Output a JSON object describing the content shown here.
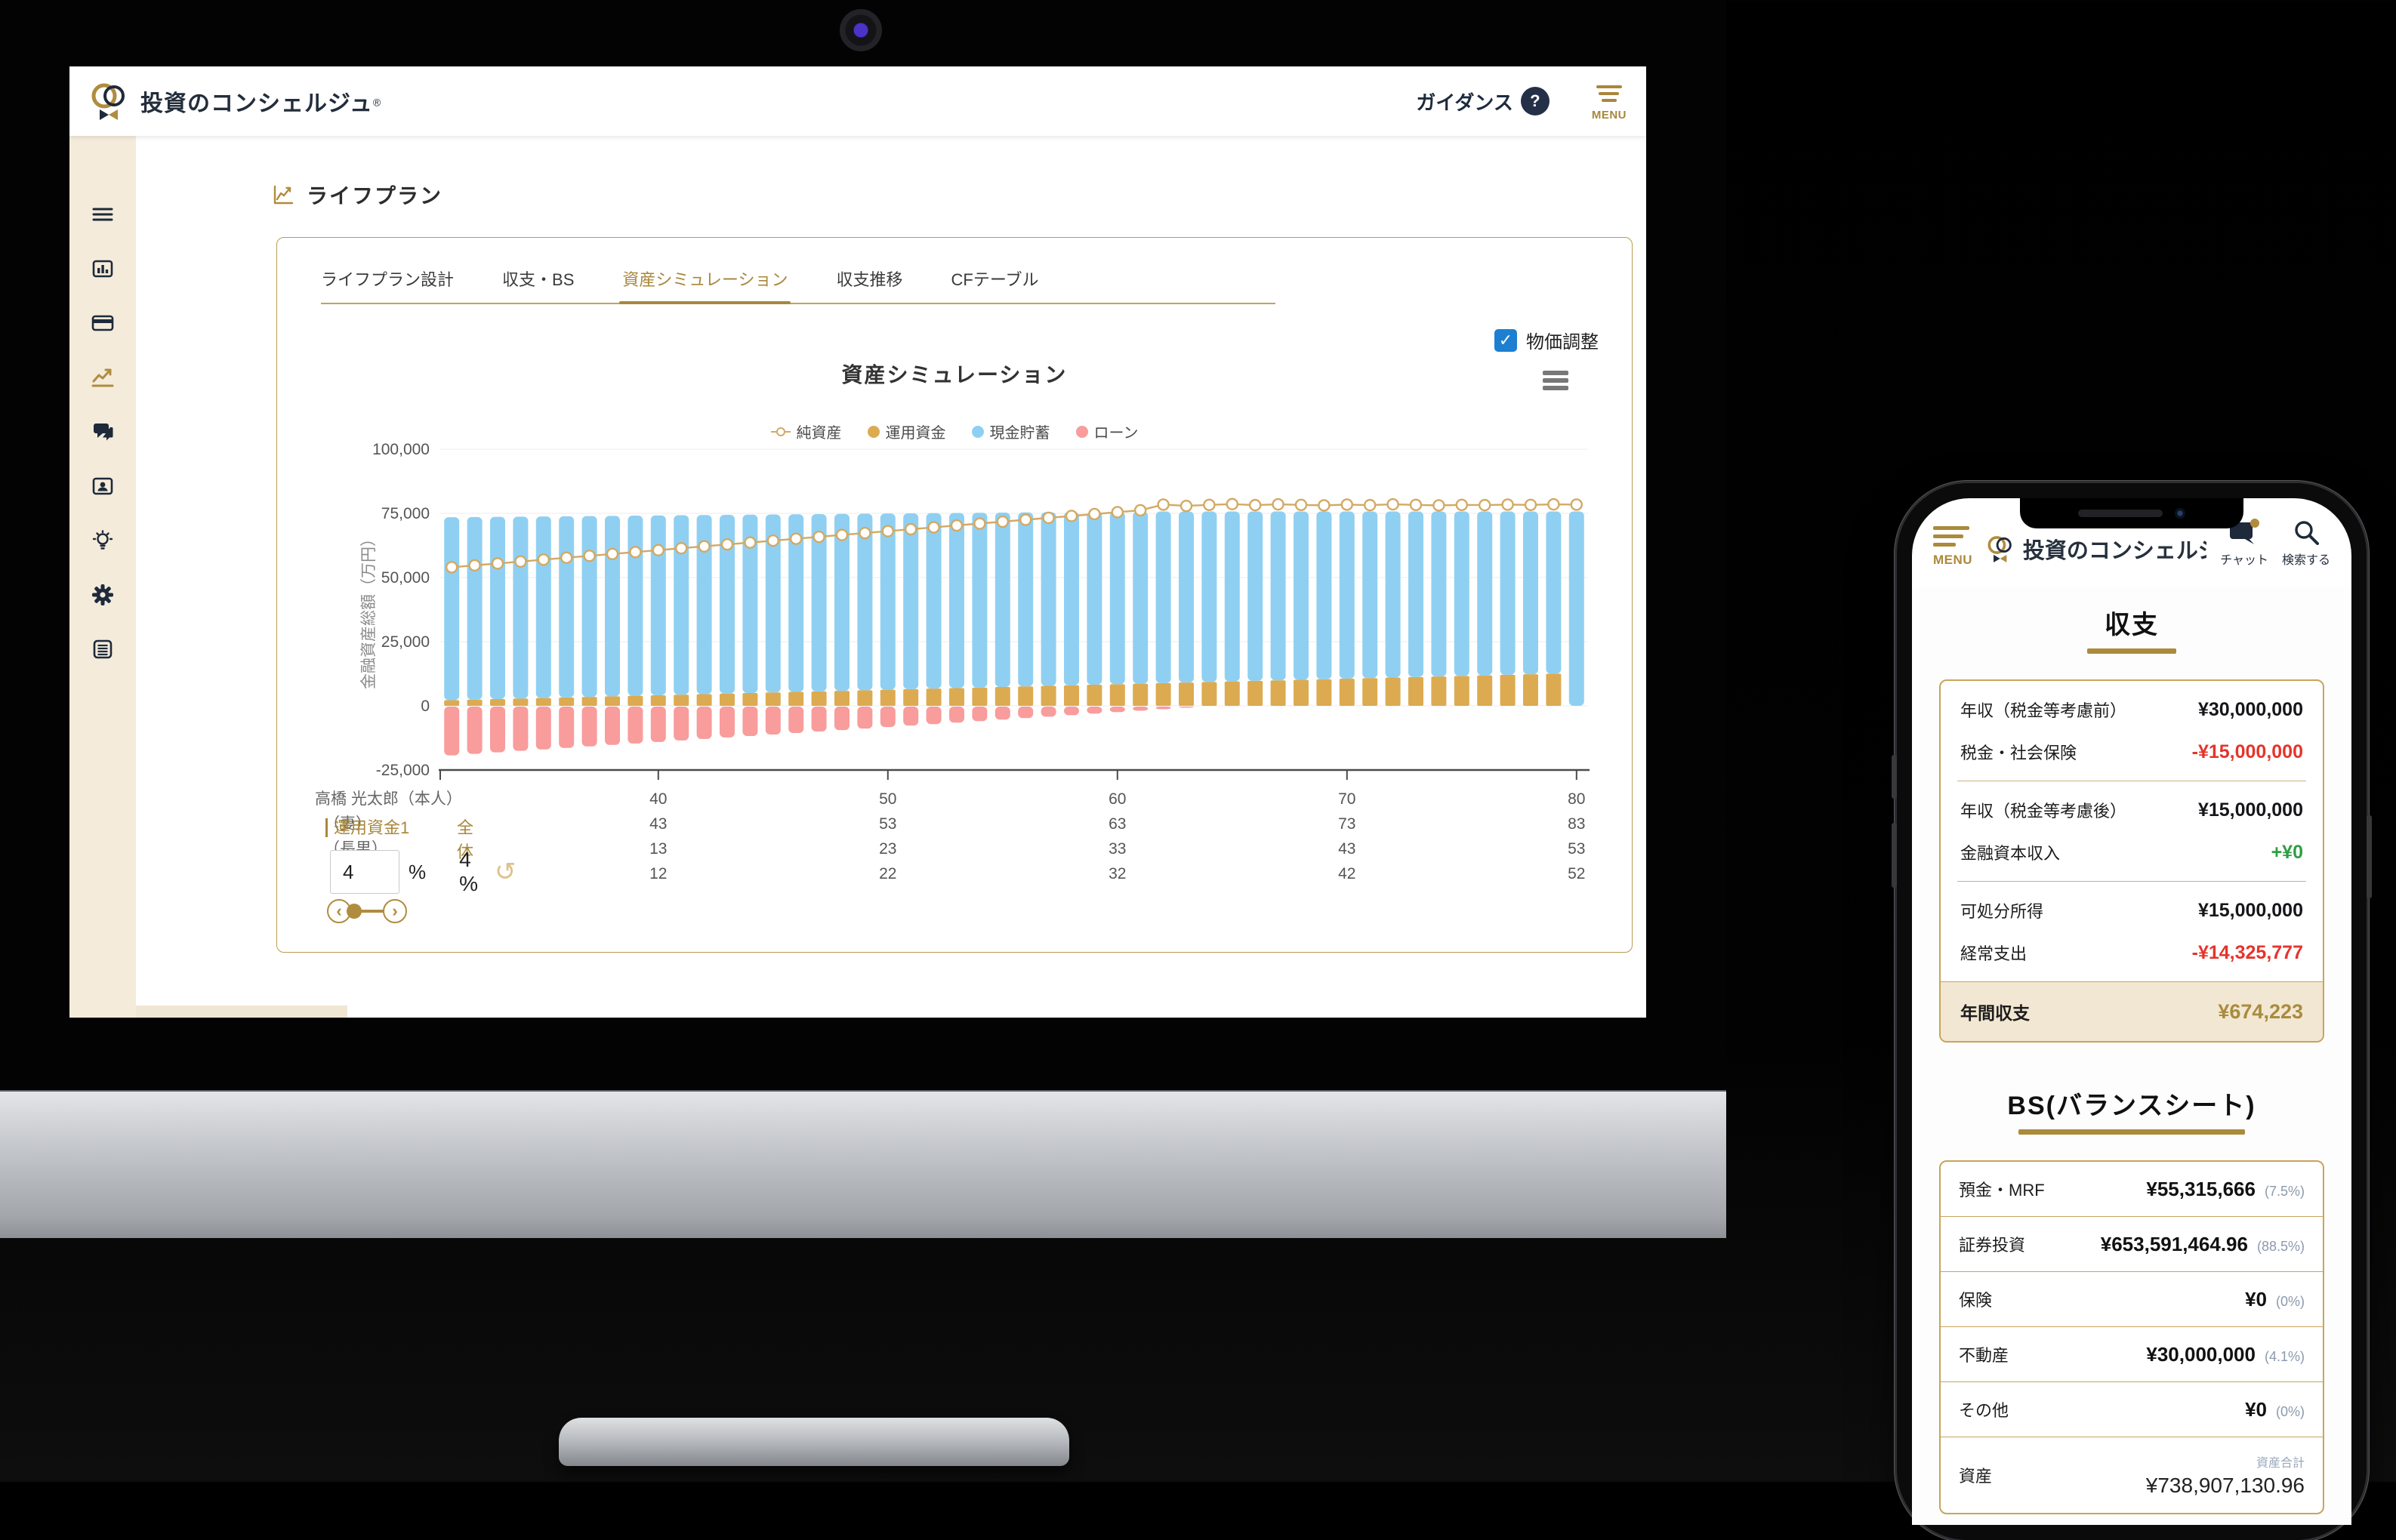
{
  "desktop": {
    "header": {
      "brand": "投資のコンシェルジュ",
      "registered": "®",
      "guidance": "ガイダンス",
      "help_glyph": "?",
      "menu": "MENU"
    },
    "page_title": "ライフプラン",
    "tabs": [
      {
        "label": "ライフプラン設計"
      },
      {
        "label": "収支・BS"
      },
      {
        "label": "資産シミュレーション"
      },
      {
        "label": "収支推移"
      },
      {
        "label": "CFテーブル"
      }
    ],
    "active_tab_index": 2,
    "price_adjust_label": "物価調整",
    "check_glyph": "✓",
    "controls": {
      "fund_label": "運用資金1",
      "overall_label": "全体",
      "fund_rate": "4",
      "percent": "%",
      "overall_rate": "4 %",
      "undo_glyph": "↺",
      "slider_left": "‹",
      "slider_right": "›"
    }
  },
  "chart_data": {
    "type": "bar",
    "title": "資産シミュレーション",
    "ylabel": "金融資産総額（万円）",
    "ylim": [
      -25000,
      100000
    ],
    "yticks": [
      100000,
      75000,
      50000,
      25000,
      0,
      -25000
    ],
    "grid": true,
    "legend_position": "top",
    "ages": [
      31,
      32,
      33,
      34,
      35,
      36,
      37,
      38,
      39,
      40,
      41,
      42,
      43,
      44,
      45,
      46,
      47,
      48,
      49,
      50,
      51,
      52,
      53,
      54,
      55,
      56,
      57,
      58,
      59,
      60,
      61,
      62,
      63,
      64,
      65,
      66,
      67,
      68,
      69,
      70,
      71,
      72,
      73,
      74,
      75,
      76,
      77,
      78,
      79,
      80
    ],
    "series": [
      {
        "name": "純資産",
        "type": "line",
        "color": "#d3a963",
        "values": [
          54000,
          54740,
          55480,
          56220,
          56960,
          57700,
          58440,
          59180,
          59920,
          60660,
          61400,
          62140,
          62880,
          63620,
          64360,
          65100,
          65840,
          66580,
          67320,
          68060,
          68800,
          69540,
          70280,
          71020,
          71760,
          72500,
          73240,
          73980,
          74720,
          75460,
          76200,
          78400,
          77900,
          78300,
          78600,
          78200,
          78500,
          78300,
          78100,
          78400,
          78200,
          78500,
          78300,
          78100,
          78300,
          78200,
          78400,
          78300,
          78500,
          78400
        ]
      },
      {
        "name": "運用資金",
        "type": "bar",
        "color": "#dcab51",
        "values": [
          2200,
          2415,
          2630,
          2845,
          3060,
          3275,
          3490,
          3705,
          3920,
          4135,
          4350,
          4565,
          4780,
          4995,
          5210,
          5425,
          5640,
          5855,
          6070,
          6285,
          6500,
          6715,
          6930,
          7145,
          7360,
          7575,
          7790,
          8005,
          8220,
          8435,
          8650,
          8865,
          9080,
          9295,
          9510,
          9725,
          9940,
          10155,
          10370,
          10585,
          10800,
          11015,
          11230,
          11445,
          11660,
          11875,
          12090,
          12305,
          12520,
          0
        ]
      },
      {
        "name": "現金貯蓄",
        "type": "bar",
        "color": "#8fd0f2",
        "values": [
          71300,
          71160,
          71020,
          70880,
          70740,
          70600,
          70460,
          70320,
          70180,
          70040,
          69900,
          69760,
          69620,
          69480,
          69340,
          69200,
          69060,
          68920,
          68780,
          68640,
          68500,
          68360,
          68220,
          68080,
          67940,
          67800,
          67660,
          67520,
          67380,
          67240,
          67100,
          66885,
          66670,
          66455,
          66240,
          66025,
          65810,
          65595,
          65380,
          65165,
          64950,
          64735,
          64520,
          64305,
          64090,
          63875,
          63660,
          63445,
          63230,
          75750
        ]
      },
      {
        "name": "ローン",
        "type": "bar",
        "color": "#f99c9c",
        "values": [
          -19000,
          -18420,
          -17840,
          -17260,
          -16680,
          -16100,
          -15520,
          -14940,
          -14360,
          -13780,
          -13200,
          -12620,
          -12040,
          -11460,
          -10880,
          -10300,
          -9720,
          -9140,
          -8560,
          -7980,
          -7400,
          -6820,
          -6240,
          -5660,
          -5080,
          -4500,
          -3920,
          -3340,
          -2760,
          -2180,
          -1600,
          -1020,
          -440,
          0,
          0,
          0,
          0,
          0,
          0,
          0,
          0,
          0,
          0,
          0,
          0,
          0,
          0,
          0,
          0,
          0
        ]
      }
    ],
    "x_tick_ages": [
      40,
      50,
      60,
      70,
      80
    ],
    "family_rows": [
      {
        "label": "高橋 光太郎（本人）",
        "values": [
          "40",
          "50",
          "60",
          "70",
          "80"
        ]
      },
      {
        "label": "（妻）",
        "values": [
          "43",
          "53",
          "63",
          "73",
          "83"
        ]
      },
      {
        "label": "（長男）",
        "values": [
          "13",
          "23",
          "33",
          "43",
          "53"
        ]
      },
      {
        "label": "（長女）",
        "values": [
          "12",
          "22",
          "32",
          "42",
          "52"
        ]
      }
    ]
  },
  "phone": {
    "header": {
      "menu": "MENU",
      "brand": "投資のコンシェルジュ",
      "chat": "チャット",
      "search": "検索する"
    },
    "income": {
      "title": "収支",
      "groups": [
        [
          {
            "label": "年収（税金等考慮前）",
            "value": "¥30,000,000",
            "tone": "dark"
          },
          {
            "label": "税金・社会保険",
            "value": "-¥15,000,000",
            "tone": "red"
          }
        ],
        [
          {
            "label": "年収（税金等考慮後）",
            "value": "¥15,000,000",
            "tone": "dark"
          },
          {
            "label": "金融資本収入",
            "value": "+¥0",
            "tone": "green"
          }
        ],
        [
          {
            "label": "可処分所得",
            "value": "¥15,000,000",
            "tone": "dark"
          },
          {
            "label": "経常支出",
            "value": "-¥14,325,777",
            "tone": "red"
          }
        ]
      ],
      "total": {
        "label": "年間収支",
        "value": "¥674,223"
      }
    },
    "bs": {
      "title": "BS(バランスシート)",
      "rows": [
        {
          "label": "預金・MRF",
          "value": "¥55,315,666",
          "pct": "(7.5%)"
        },
        {
          "label": "証券投資",
          "value": "¥653,591,464.96",
          "pct": "(88.5%)"
        },
        {
          "label": "保険",
          "value": "¥0",
          "pct": "(0%)"
        },
        {
          "label": "不動産",
          "value": "¥30,000,000",
          "pct": "(4.1%)"
        },
        {
          "label": "その他",
          "value": "¥0",
          "pct": "(0%)"
        },
        {
          "label": "資産",
          "value": "¥738,907,130.96",
          "pct": "",
          "sublabel": "資産合計"
        }
      ]
    }
  },
  "colors": {
    "brand_gold": "#a8873b",
    "navy": "#1e2a3a",
    "checkbox_blue": "#1d7fd1",
    "negative_red": "#e5342c",
    "positive_green": "#2f9e44",
    "bar_cash": "#8fd0f2",
    "bar_fund": "#dcab51",
    "bar_loan": "#f99c9c",
    "line_net": "#d3a963"
  }
}
